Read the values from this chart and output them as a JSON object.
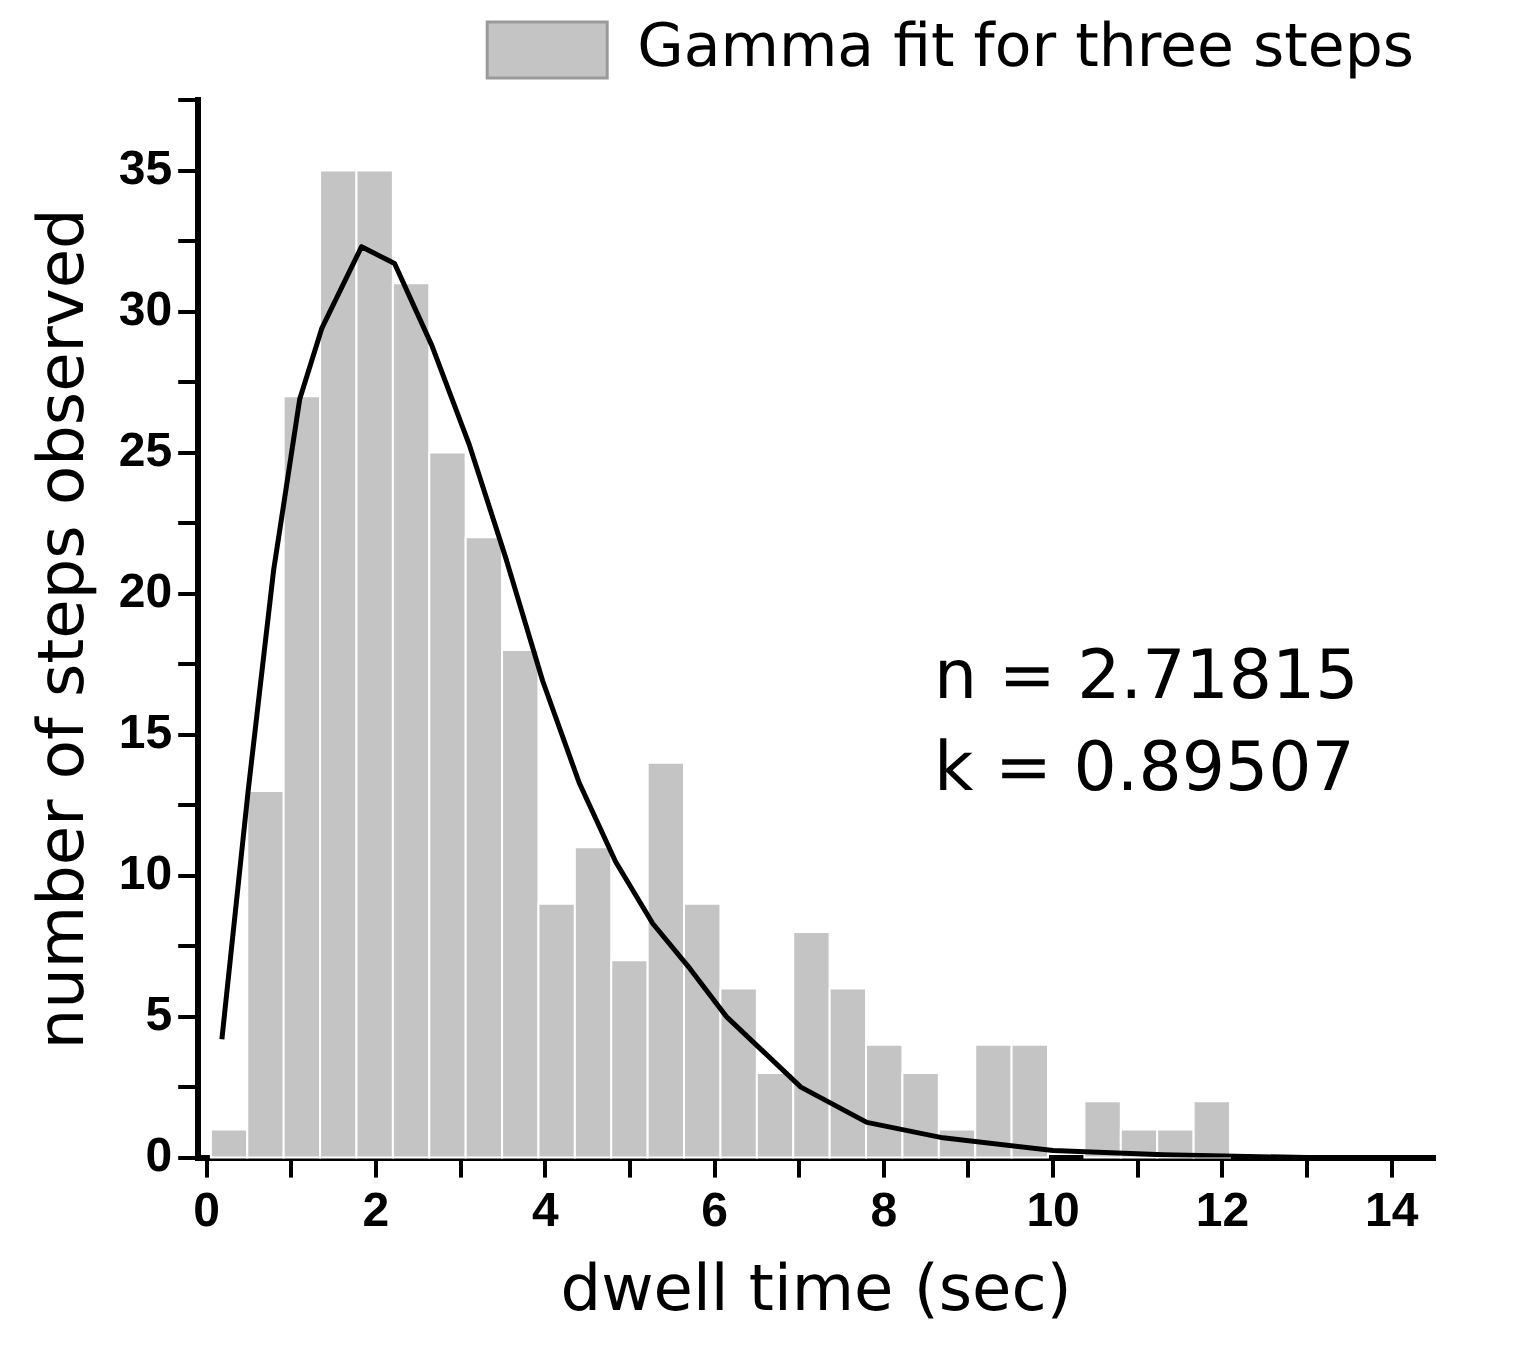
{
  "chart_data": {
    "type": "histogram",
    "xlabel": "dwell time (sec)",
    "ylabel": "number of steps observed",
    "bins": [
      0.05,
      0.48,
      0.91,
      1.34,
      1.77,
      2.2,
      2.63,
      3.06,
      3.49,
      3.92,
      4.35,
      4.78,
      5.21,
      5.64,
      6.07,
      6.5,
      6.93,
      7.36,
      7.79,
      8.22,
      8.65,
      9.08,
      9.51,
      9.94,
      10.37,
      10.8,
      11.23,
      11.66,
      12.09
    ],
    "series": [
      {
        "name": "Gamma fit for three steps",
        "color": "#c4c4c4",
        "values": [
          1,
          13,
          27,
          35,
          35,
          31,
          25,
          22,
          18,
          9,
          11,
          7,
          14,
          9,
          6,
          3,
          8,
          6,
          4,
          3,
          1,
          4,
          4,
          0,
          2,
          1,
          1,
          2
        ]
      },
      {
        "type": "line",
        "color": "#000000",
        "x": [
          0.18,
          0.49,
          0.79,
          1.1,
          1.36,
          1.83,
          2.22,
          2.66,
          3.1,
          3.53,
          3.97,
          4.4,
          4.83,
          5.27,
          5.71,
          6.14,
          7.02,
          7.8,
          8.7,
          10,
          11.3,
          13
        ],
        "values": [
          4.2,
          13,
          20.8,
          26.9,
          29.4,
          32.3,
          31.7,
          28.8,
          25.3,
          21.3,
          16.9,
          13.3,
          10.5,
          8.3,
          6.7,
          5,
          2.5,
          1.25,
          0.7,
          0.25,
          0.1,
          0
        ]
      }
    ],
    "xlim": [
      -0.1,
      14.5
    ],
    "ylim": [
      0,
      37.5
    ],
    "xticks": [
      0,
      {
        "value": 1,
        "label": null
      },
      2,
      {
        "value": 3,
        "label": null
      },
      4,
      {
        "value": 5,
        "label": null
      },
      6,
      {
        "value": 7,
        "label": null
      },
      8,
      {
        "value": 9,
        "label": null
      },
      10,
      {
        "value": 11,
        "label": null
      },
      12,
      {
        "value": 13,
        "label": null
      },
      14
    ],
    "yticks": [
      0,
      {
        "value": 2.5,
        "label": null
      },
      5,
      {
        "value": 7.5,
        "label": null
      },
      10,
      {
        "value": 12.5,
        "label": null
      },
      15,
      {
        "value": 17.5,
        "label": null
      },
      20,
      {
        "value": 22.5,
        "label": null
      },
      25,
      {
        "value": 27.5,
        "label": null
      },
      30,
      {
        "value": 32.5,
        "label": null
      },
      35,
      {
        "value": 37.5,
        "label": null
      }
    ],
    "grid": false,
    "legend": "top right",
    "marker": "none",
    "line_style": "solid",
    "annotations": [
      "n = 2.71815",
      "k = 0.89507"
    ]
  }
}
